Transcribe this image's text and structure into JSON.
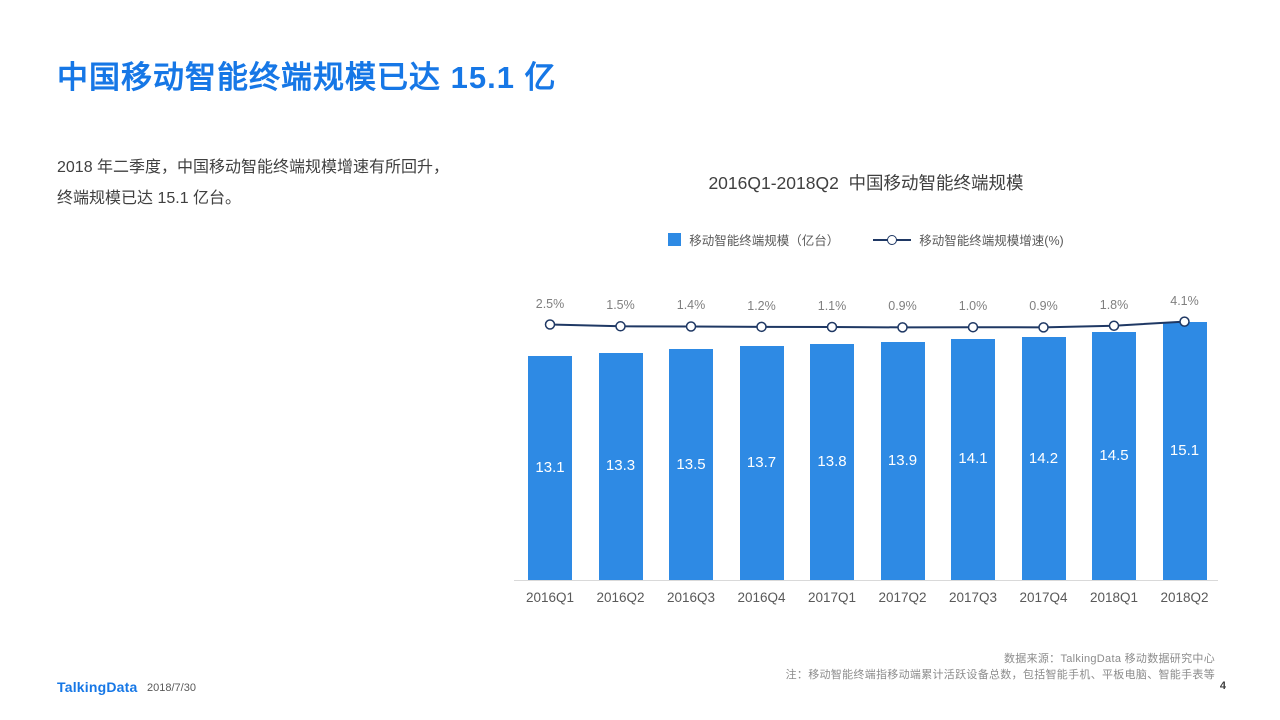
{
  "slide": {
    "title": "中国移动智能终端规模已达 15.1 亿",
    "description": "2018 年二季度，中国移动智能终端规模增速有所回升，终端规模已达 15.1 亿台。"
  },
  "chart_data": {
    "type": "bar",
    "title": "2016Q1-2018Q2  中国移动智能终端规模",
    "categories": [
      "2016Q1",
      "2016Q2",
      "2016Q3",
      "2016Q4",
      "2017Q1",
      "2017Q2",
      "2017Q3",
      "2017Q4",
      "2018Q1",
      "2018Q2"
    ],
    "series": [
      {
        "name": "移动智能终端规模（亿台）",
        "type": "bar",
        "values": [
          13.1,
          13.3,
          13.5,
          13.7,
          13.8,
          13.9,
          14.1,
          14.2,
          14.5,
          15.1
        ],
        "color": "#2E8AE4"
      },
      {
        "name": "移动智能终端规模增速(%)",
        "type": "line",
        "values": [
          2.5,
          1.5,
          1.4,
          1.2,
          1.1,
          0.9,
          1.0,
          0.9,
          1.8,
          4.1
        ],
        "labels": [
          "2.5%",
          "1.5%",
          "1.4%",
          "1.2%",
          "1.1%",
          "0.9%",
          "1.0%",
          "0.9%",
          "1.8%",
          "4.1%"
        ],
        "color": "#1F3864"
      }
    ],
    "ylim": [
      0,
      16
    ],
    "legend_position": "top",
    "grid": false
  },
  "footer": {
    "source": "数据来源：TalkingData 移动数据研究中心",
    "note": "注：移动智能终端指移动端累计活跃设备总数，包括智能手机、平板电脑、智能手表等",
    "logo": "TalkingData",
    "date": "2018/7/30",
    "page": "4"
  }
}
